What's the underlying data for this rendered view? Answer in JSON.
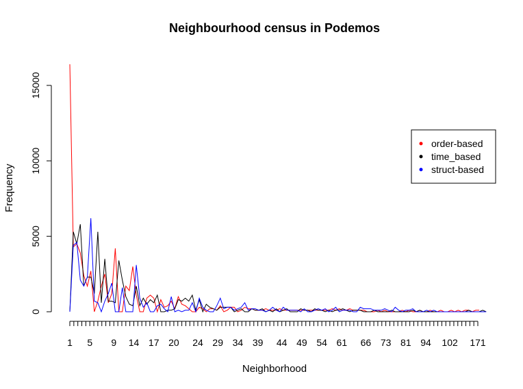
{
  "chart_data": {
    "type": "line",
    "title": "Neighbourhood census in Podemos",
    "xlabel": "Neighborhood",
    "ylabel": "Frequency",
    "ylim": [
      0,
      16400
    ],
    "y_ticks": [
      0,
      5000,
      10000,
      15000
    ],
    "x_tick_labels": [
      "1",
      "5",
      "9",
      "14",
      "17",
      "20",
      "24",
      "29",
      "34",
      "39",
      "44",
      "49",
      "54",
      "61",
      "66",
      "73",
      "81",
      "94",
      "102",
      "171"
    ],
    "legend": {
      "position": "right",
      "entries": [
        "order-based",
        "time_based",
        "struct-based"
      ]
    },
    "series": [
      {
        "name": "order-based",
        "color": "#ff0000",
        "values": [
          16400,
          4300,
          4500,
          3900,
          2400,
          1700,
          2700,
          0,
          700,
          1700,
          2500,
          600,
          1200,
          4200,
          0,
          0,
          1700,
          1400,
          3000,
          1100,
          0,
          0,
          900,
          1100,
          900,
          0,
          800,
          300,
          400,
          700,
          200,
          1000,
          500,
          400,
          200,
          0,
          0,
          300,
          200,
          0,
          200,
          200,
          100,
          400,
          0,
          100,
          300,
          300,
          0,
          100,
          300,
          200,
          200,
          100,
          100,
          100,
          200,
          100,
          100,
          100,
          200,
          100,
          100,
          100,
          100,
          100,
          100,
          100,
          100,
          100,
          100,
          100,
          100,
          100,
          100,
          200,
          100,
          200,
          100,
          100,
          200,
          100,
          100,
          100,
          100,
          0,
          0,
          0,
          100,
          0,
          100,
          0,
          0,
          0,
          0,
          100,
          0,
          100,
          0,
          0,
          100,
          0,
          0,
          100,
          0,
          0,
          100,
          0,
          0,
          100,
          0,
          100,
          0,
          100,
          100,
          0,
          100,
          100
        ]
      },
      {
        "name": "time_based",
        "color": "#000000",
        "values": [
          0,
          5300,
          4500,
          5800,
          1700,
          2300,
          2300,
          1200,
          5300,
          600,
          3500,
          700,
          700,
          600,
          3400,
          2100,
          1000,
          500,
          400,
          1700,
          400,
          900,
          500,
          800,
          600,
          1100,
          0,
          0,
          100,
          100,
          200,
          800,
          700,
          900,
          700,
          1100,
          100,
          800,
          0,
          500,
          300,
          200,
          100,
          300,
          300,
          300,
          300,
          0,
          100,
          200,
          0,
          0,
          200,
          100,
          100,
          200,
          0,
          100,
          0,
          200,
          0,
          100,
          200,
          0,
          0,
          0,
          200,
          100,
          100,
          0,
          200,
          100,
          100,
          0,
          100,
          0,
          100,
          100,
          200,
          100,
          0,
          100,
          100,
          100,
          0,
          0,
          0,
          100,
          0,
          0,
          0,
          0,
          100,
          0,
          0,
          0,
          0,
          0,
          100,
          0,
          100,
          0,
          0,
          0,
          0,
          0,
          0,
          0,
          0,
          0,
          0,
          0,
          0,
          0,
          100,
          0,
          0,
          0,
          100,
          0
        ]
      },
      {
        "name": "struct-based",
        "color": "#0000ff",
        "values": [
          0,
          4400,
          4600,
          2100,
          1700,
          2300,
          6200,
          700,
          600,
          0,
          700,
          1200,
          1900,
          0,
          0,
          1600,
          0,
          0,
          0,
          3100,
          900,
          300,
          600,
          0,
          0,
          400,
          500,
          200,
          0,
          1000,
          0,
          100,
          0,
          100,
          100,
          600,
          0,
          900,
          300,
          100,
          0,
          0,
          400,
          900,
          200,
          300,
          300,
          100,
          200,
          300,
          600,
          100,
          200,
          200,
          100,
          100,
          0,
          100,
          300,
          100,
          0,
          300,
          100,
          100,
          100,
          100,
          0,
          200,
          0,
          0,
          100,
          200,
          100,
          200,
          0,
          100,
          300,
          0,
          100,
          100,
          100,
          0,
          0,
          300,
          200,
          200,
          200,
          100,
          100,
          100,
          200,
          100,
          0,
          300,
          100,
          0,
          100,
          100,
          200,
          0,
          0,
          0,
          100,
          0,
          100,
          0,
          0,
          0,
          0,
          0,
          0,
          0,
          0,
          0,
          0,
          0,
          0,
          0,
          0,
          0
        ]
      }
    ]
  }
}
